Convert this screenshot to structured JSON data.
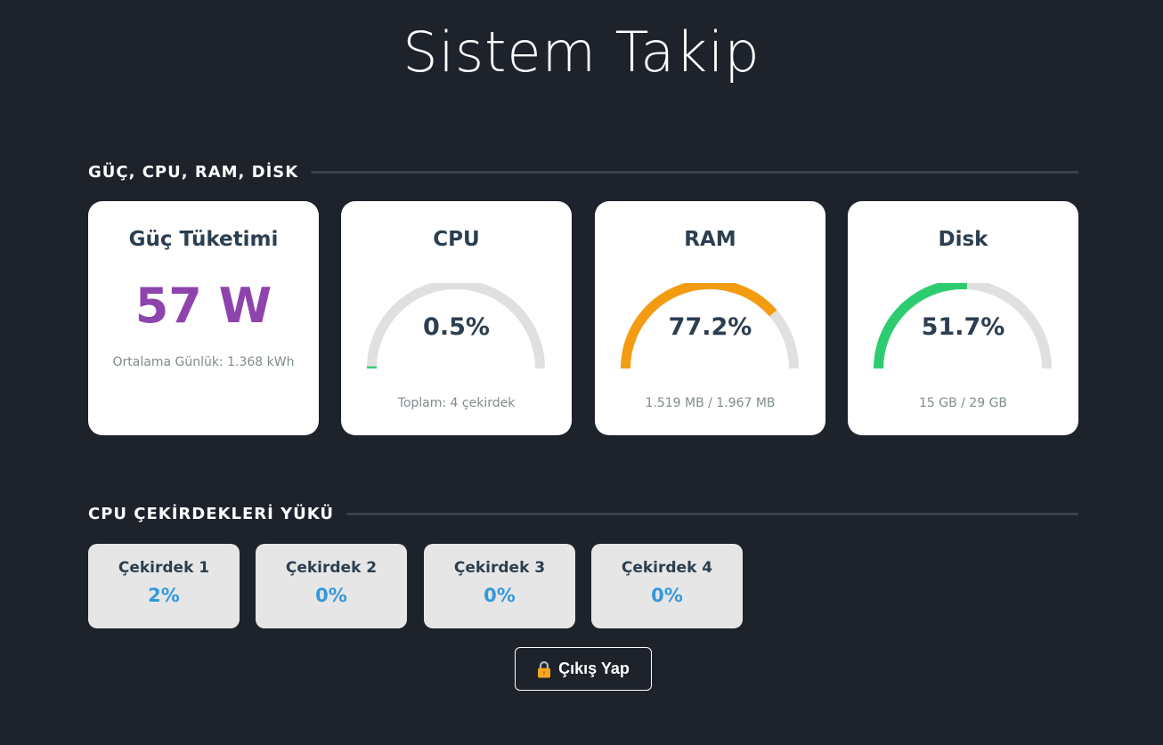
{
  "title": "Sistem Takip",
  "sections": {
    "overview": "GÜÇ, CPU, RAM, DİSK",
    "cores": "CPU ÇEKİRDEKLERİ YÜKÜ"
  },
  "power": {
    "title": "Güç Tüketimi",
    "value": "57 W",
    "sub": "Ortalama Günlük: 1.368 kWh"
  },
  "gauges": [
    {
      "title": "CPU",
      "value_text": "0.5%",
      "percent": 0.5,
      "sub": "Toplam: 4 çekirdek",
      "color": "#2ecc71"
    },
    {
      "title": "RAM",
      "value_text": "77.2%",
      "percent": 77.2,
      "sub": "1.519 MB / 1.967 MB",
      "color": "#f39c12"
    },
    {
      "title": "Disk",
      "value_text": "51.7%",
      "percent": 51.7,
      "sub": "15 GB / 29 GB",
      "color": "#2ecc71"
    }
  ],
  "cores": [
    {
      "name": "Çekirdek 1",
      "value": "2%"
    },
    {
      "name": "Çekirdek 2",
      "value": "0%"
    },
    {
      "name": "Çekirdek 3",
      "value": "0%"
    },
    {
      "name": "Çekirdek 4",
      "value": "0%"
    }
  ],
  "logout": {
    "label": "Çıkış Yap",
    "icon": "lock-icon"
  },
  "colors": {
    "background": "#1d222b",
    "track": "#e0e0e0",
    "power": "#8e44ad",
    "core_value": "#3498db"
  }
}
